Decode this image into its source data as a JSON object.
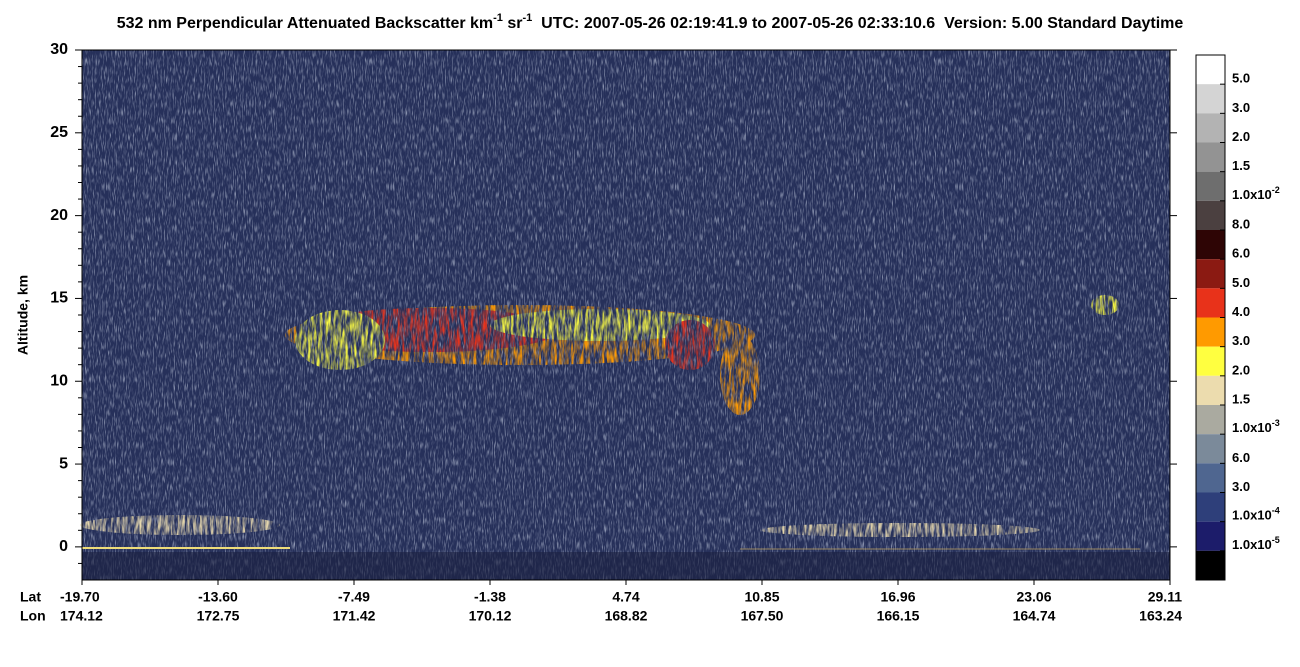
{
  "chart_data": {
    "type": "curtain",
    "title": [
      {
        "text": "532 nm Perpendicular Attenuated Backscatter km"
      },
      {
        "sup": "-1"
      },
      {
        "text": " sr"
      },
      {
        "sup": "-1"
      },
      {
        "text": "  UTC: 2007-05-26 02:19:41.9 to 2007-05-26 02:33:10.6  Version: 5.00 Standard Daytime"
      }
    ],
    "ylabel": "Altitude, km",
    "ylim": [
      -2,
      30
    ],
    "yticks": [
      0,
      5,
      10,
      15,
      20,
      25,
      30
    ],
    "yminorticks": [
      -1,
      1,
      2,
      3,
      4,
      6,
      7,
      8,
      9,
      11,
      12,
      13,
      14,
      16,
      17,
      18,
      19,
      21,
      22,
      23,
      24,
      26,
      27,
      28,
      29
    ],
    "x_row_labels": [
      "Lat",
      "Lon"
    ],
    "x_ticks": [
      {
        "lat": "-19.70",
        "lon": "174.12"
      },
      {
        "lat": "-13.60",
        "lon": "172.75"
      },
      {
        "lat": "-7.49",
        "lon": "171.42"
      },
      {
        "lat": "-1.38",
        "lon": "170.12"
      },
      {
        "lat": "4.74",
        "lon": "168.82"
      },
      {
        "lat": "10.85",
        "lon": "167.50"
      },
      {
        "lat": "16.96",
        "lon": "166.15"
      },
      {
        "lat": "23.06",
        "lon": "164.74"
      },
      {
        "lat": "29.11",
        "lon": "163.24"
      }
    ],
    "colorbar": {
      "colors": [
        "#ffffff",
        "#d4d4d4",
        "#b3b3b3",
        "#939393",
        "#6e6e6e",
        "#4b4040",
        "#2e0505",
        "#8b1a12",
        "#e8321a",
        "#ff9a00",
        "#ffff40",
        "#ecdcae",
        "#aaaaa0",
        "#7b8a9a",
        "#4f6690",
        "#2e3f7a",
        "#1c1c6a",
        "#000000"
      ],
      "labels": [
        "5.0",
        "3.0",
        "2.0",
        "1.5",
        {
          "text": "1.0x10",
          "sup": "-2"
        },
        "8.0",
        "6.0",
        "5.0",
        "4.0",
        "3.0",
        "2.0",
        "1.5",
        {
          "text": "1.0x10",
          "sup": "-3"
        },
        "6.0",
        "3.0",
        {
          "text": "1.0x10",
          "sup": "-4"
        },
        {
          "text": "1.0x10",
          "sup": "-5"
        }
      ]
    }
  }
}
